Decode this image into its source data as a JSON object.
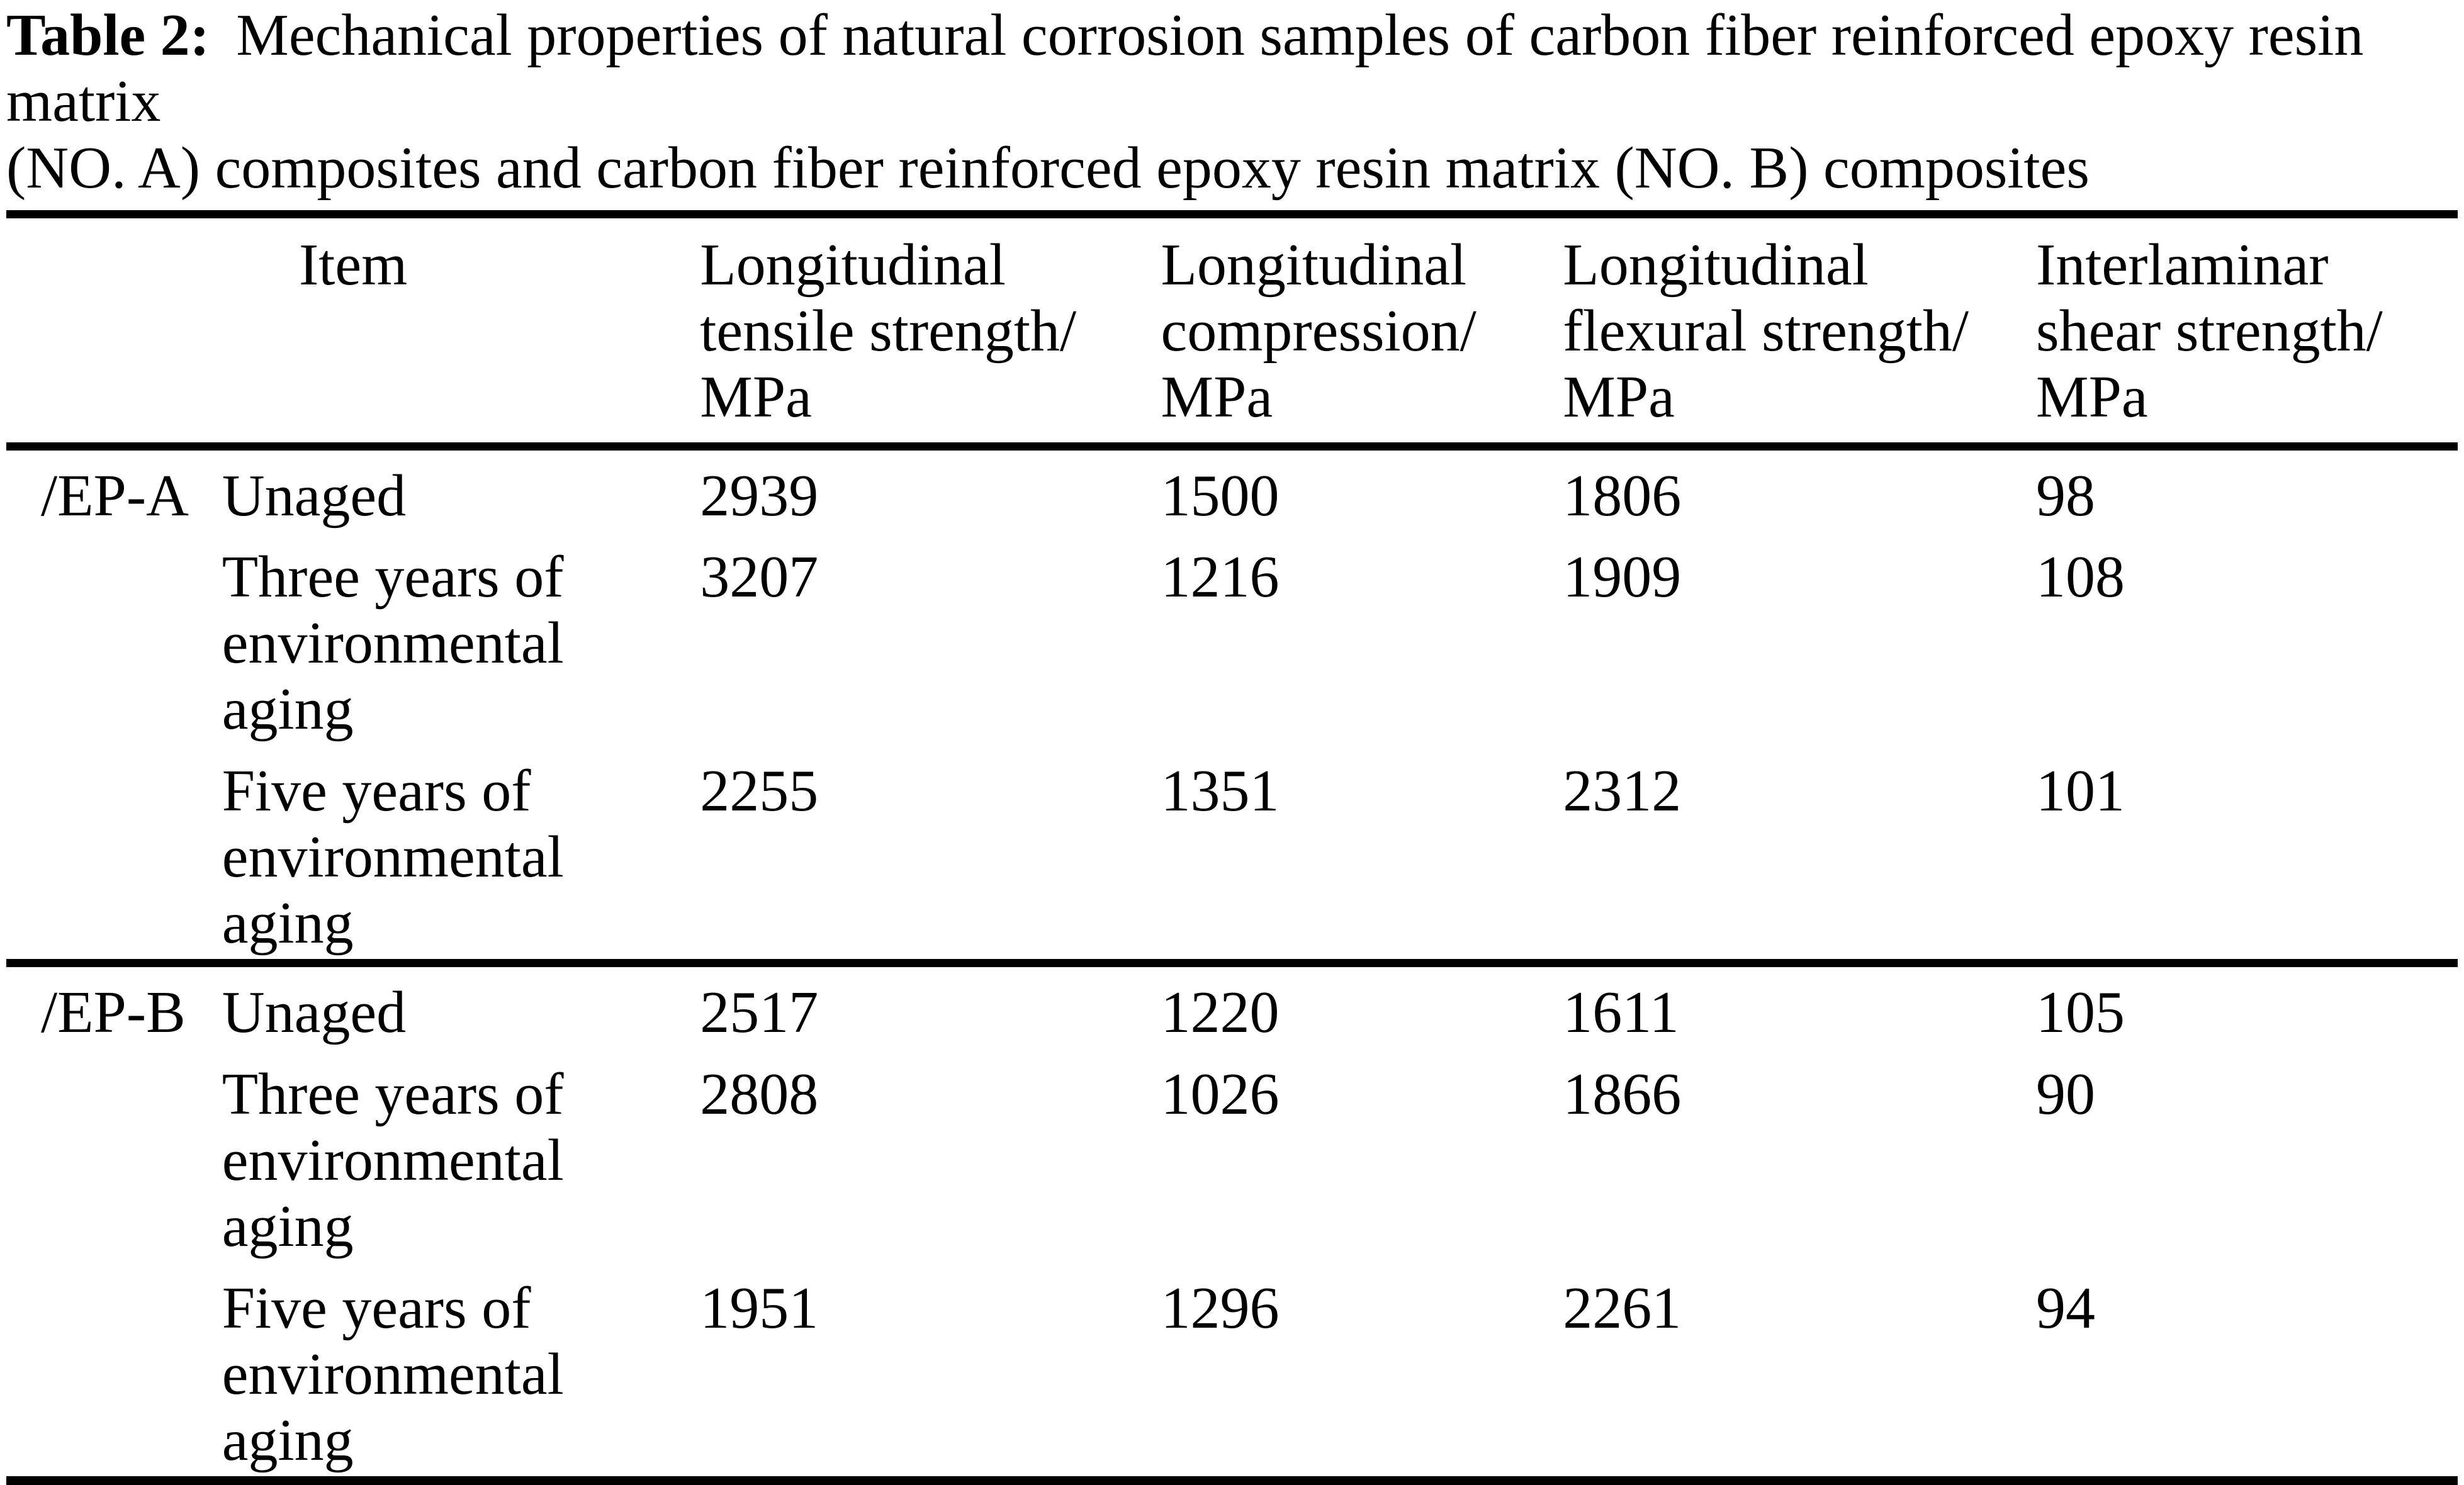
{
  "caption": {
    "label": "Table 2:",
    "text": "Mechanical properties of natural corrosion samples of carbon fiber reinforced epoxy resin matrix\n(NO. A) composites and carbon fiber reinforced epoxy resin matrix (NO. B) composites"
  },
  "table": {
    "header": {
      "item": "Item",
      "cols": [
        "Longitudinal\ntensile strength/\nMPa",
        "Longitudinal\ncompression/\nMPa",
        "Longitudinal\nflexural strength/\nMPa",
        "Interlaminar\nshear strength/\nMPa"
      ]
    },
    "groups": [
      {
        "name": "/EP-A",
        "rows": [
          {
            "item": "Unaged",
            "values": [
              "2939",
              "1500",
              "1806",
              "98"
            ]
          },
          {
            "item": "Three years of\nenvironmental\naging",
            "values": [
              "3207",
              "1216",
              "1909",
              "108"
            ]
          },
          {
            "item": "Five years of\nenvironmental\naging",
            "values": [
              "2255",
              "1351",
              "2312",
              "101"
            ]
          }
        ]
      },
      {
        "name": "/EP-B",
        "rows": [
          {
            "item": "Unaged",
            "values": [
              "2517",
              "1220",
              "1611",
              "105"
            ]
          },
          {
            "item": "Three years of\nenvironmental\naging",
            "values": [
              "2808",
              "1026",
              "1866",
              "90"
            ]
          },
          {
            "item": "Five years of\nenvironmental\naging",
            "values": [
              "1951",
              "1296",
              "2261",
              "94"
            ]
          }
        ]
      }
    ]
  },
  "colors": {
    "text": "#000000",
    "background": "#ffffff",
    "rule": "#000000"
  }
}
